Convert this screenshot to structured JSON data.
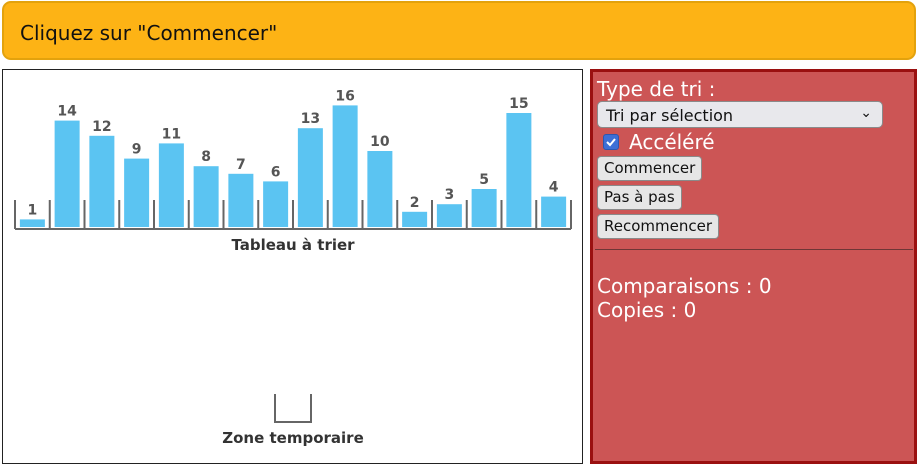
{
  "banner": {
    "message": "Cliquez sur \"Commencer\""
  },
  "array": {
    "values": [
      1,
      14,
      12,
      9,
      11,
      8,
      7,
      6,
      13,
      16,
      10,
      2,
      3,
      5,
      15,
      4
    ],
    "label": "Tableau à trier",
    "bar_color": "#5bc4f2"
  },
  "temp_zone": {
    "label": "Zone temporaire"
  },
  "controls": {
    "sort_type_label": "Type de tri :",
    "sort_select_value": "Tri par sélection",
    "fast_checkbox_label": "Accéléré",
    "fast_checked": true,
    "start_button": "Commencer",
    "step_button": "Pas à pas",
    "restart_button": "Recommencer",
    "comparisons": "Comparaisons : 0",
    "copies": "Copies : 0"
  },
  "colors": {
    "banner": "#fdb315",
    "panel": "#cc5555",
    "panel_border": "#9a1010"
  }
}
